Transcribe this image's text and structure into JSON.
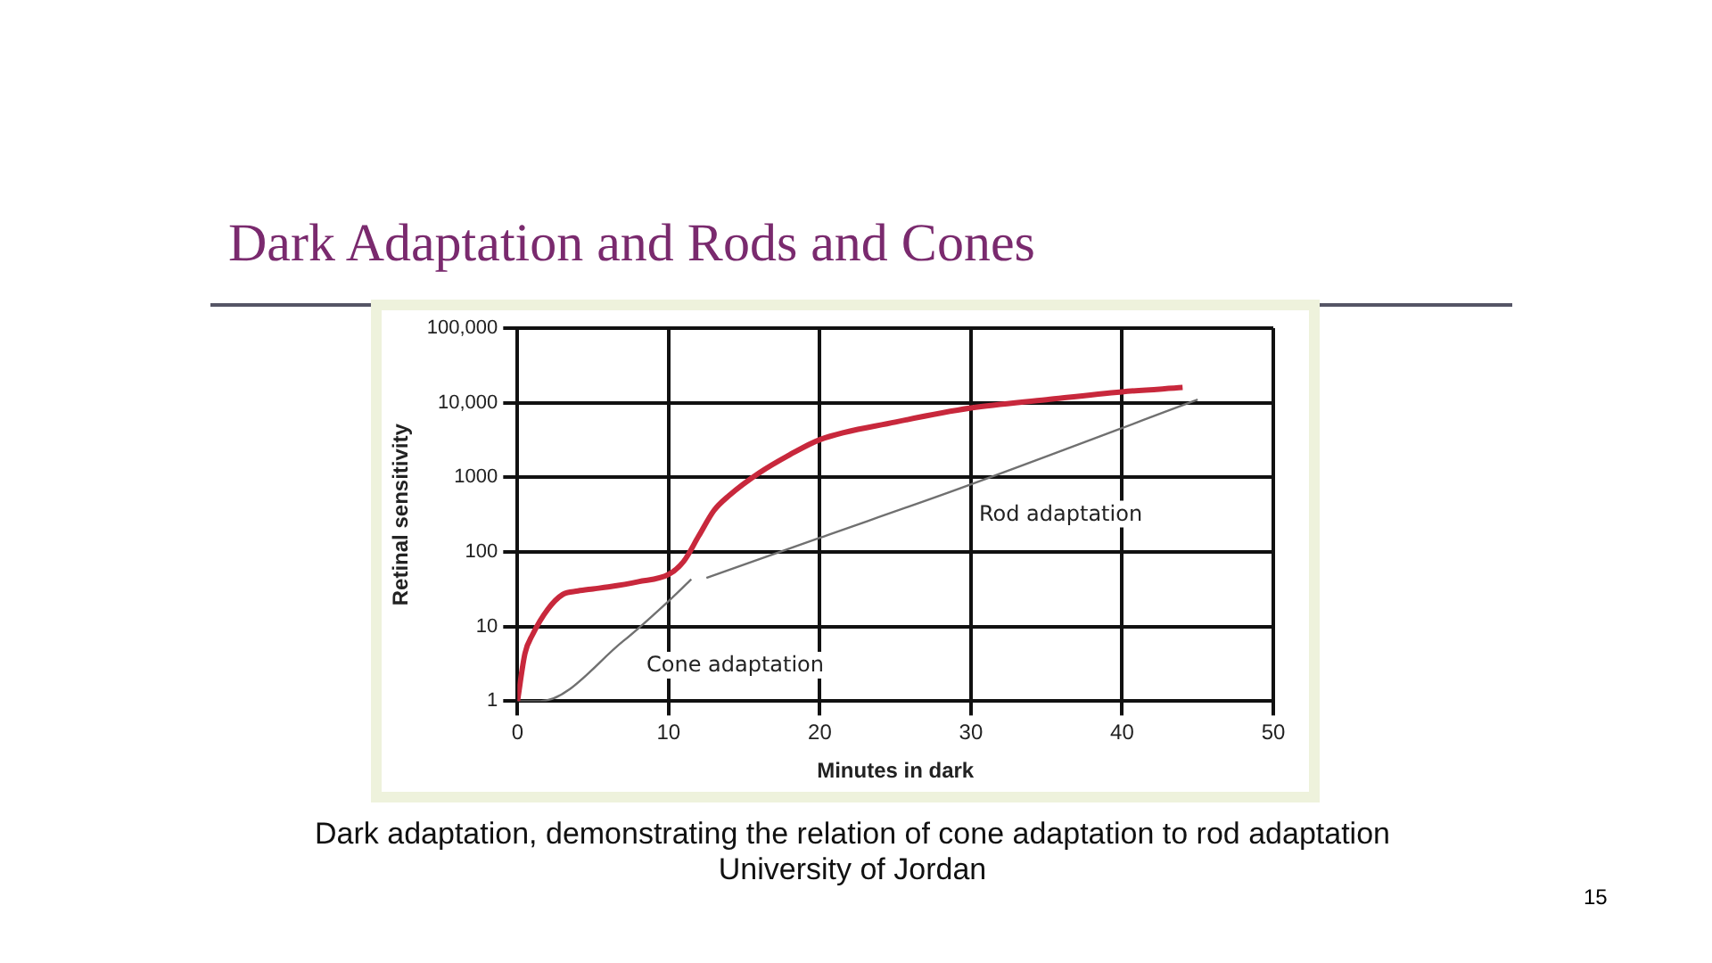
{
  "chart_data": {
    "type": "line",
    "title": "Dark Adaptation and Rods and Cones",
    "xlabel": "Minutes in dark",
    "ylabel": "Retinal sensitivity",
    "series": [
      {
        "color": "#c8283c",
        "x": [
          0,
          0.5,
          1,
          2,
          3,
          4,
          5,
          6,
          8,
          10,
          11,
          12,
          13,
          14,
          16,
          18,
          20,
          25,
          30,
          35,
          40,
          44
        ],
        "values": [
          1,
          4.4,
          7.8,
          17,
          27,
          30,
          32,
          34,
          40,
          50,
          75,
          165,
          360,
          570,
          1150,
          2000,
          3200,
          5500,
          8500,
          11000,
          14000,
          16000
        ]
      },
      {
        "name": "Cone adaptation",
        "color": "#707070",
        "x": [
          0,
          1.5,
          7,
          10,
          11.5
        ],
        "values": [
          1,
          1,
          6.4,
          22,
          43
        ]
      },
      {
        "name": "Rod adaptation",
        "color": "#707070",
        "x": [
          12.5,
          20,
          29,
          45
        ],
        "values": [
          45,
          155,
          680,
          11000
        ]
      }
    ],
    "xlim": [
      0,
      50
    ],
    "xticks": [
      0,
      10,
      20,
      30,
      40,
      50
    ],
    "ylim": [
      1,
      100000
    ],
    "yticks": [
      1,
      10,
      100,
      1000,
      {
        "value": 10000,
        "label": "10,000"
      },
      {
        "value": 100000,
        "label": "100,000"
      }
    ],
    "log": "y",
    "grid": true,
    "legend": false,
    "marker": "none",
    "line_style": "solid",
    "annotations": [
      "Dark adaptation, demonstrating the relation of cone adaptation to rod adaptation",
      "University of Jordan",
      "15"
    ]
  }
}
